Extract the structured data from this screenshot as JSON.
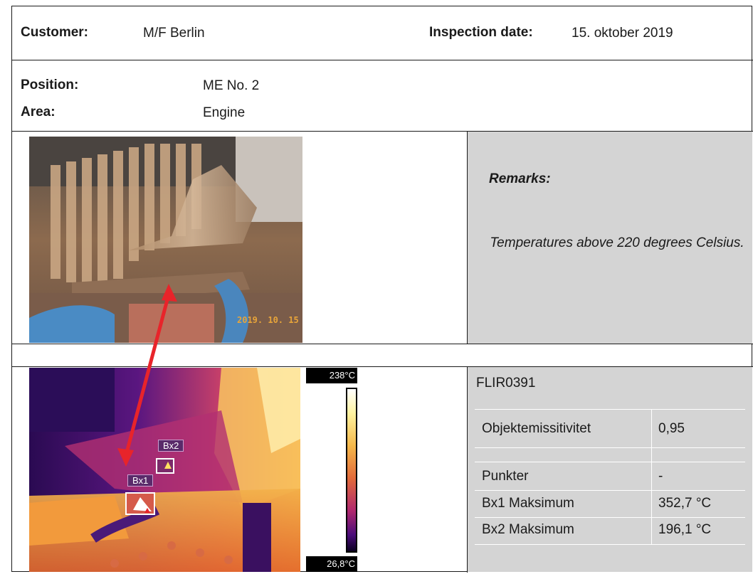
{
  "header": {
    "customer_label": "Customer:",
    "customer_value": "M/F Berlin",
    "inspection_label": "Inspection date:",
    "inspection_value": "15. oktober 2019"
  },
  "location": {
    "position_label": "Position:",
    "position_value": "ME No. 2",
    "area_label": "Area:",
    "area_value": "Engine"
  },
  "photo": {
    "date_stamp": "2019. 10. 15"
  },
  "remarks": {
    "title": "Remarks:",
    "text": "Temperatures above 220 degrees Celsius."
  },
  "thermal": {
    "scale_max": "238°C",
    "scale_min": "26,8°C",
    "box1_label": "Bx1",
    "box2_label": "Bx2"
  },
  "measurements": {
    "file_name": "FLIR0391",
    "rows": [
      {
        "name": "Objektemissitivitet",
        "value": "0,95"
      },
      {
        "name": "Punkter",
        "value": "-"
      },
      {
        "name": "Bx1 Maksimum",
        "value": "352,7 °C"
      },
      {
        "name": "Bx2 Maksimum",
        "value": "196,1 °C"
      }
    ]
  },
  "colors": {
    "remarks_background": "#d4d4d4",
    "arrow": "#e8242a",
    "border": "#1a1a1a"
  }
}
